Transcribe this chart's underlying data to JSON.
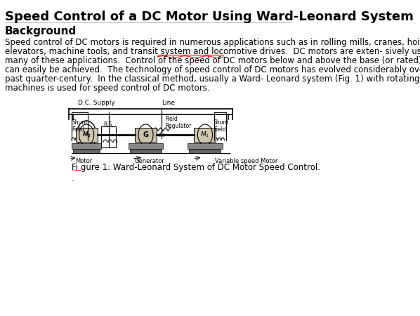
{
  "title": "Speed Control of a DC Motor Using Ward-Leonard System",
  "section": "Background",
  "body_text": [
    "Speed control of DC motors is required in numerous applications such as in rolling mills, cranes, hoists,",
    "elevators, machine tools, and transit system and locomotive drives.  DC motors are exten- sively used in",
    "many of these applications.  Control of the speed of DC motors below and above the base (or rated) speed",
    "can easily be achieved.  The technology of speed control of DC motors has evolved considerably over the",
    "past quarter-century.  In the classical method, usually a Ward- Leonard system (Fig. 1) with rotating",
    "machines is used for speed control of DC motors."
  ],
  "underline_words": "exten- sively",
  "figure_caption": "Fi gure 1: Ward-Leonard System of DC Motor Speed Control.",
  "figure_sub": ".",
  "bg_color": "#ffffff",
  "text_color": "#000000",
  "title_fontsize": 13,
  "section_fontsize": 11,
  "body_fontsize": 8.5,
  "caption_fontsize": 8.5
}
